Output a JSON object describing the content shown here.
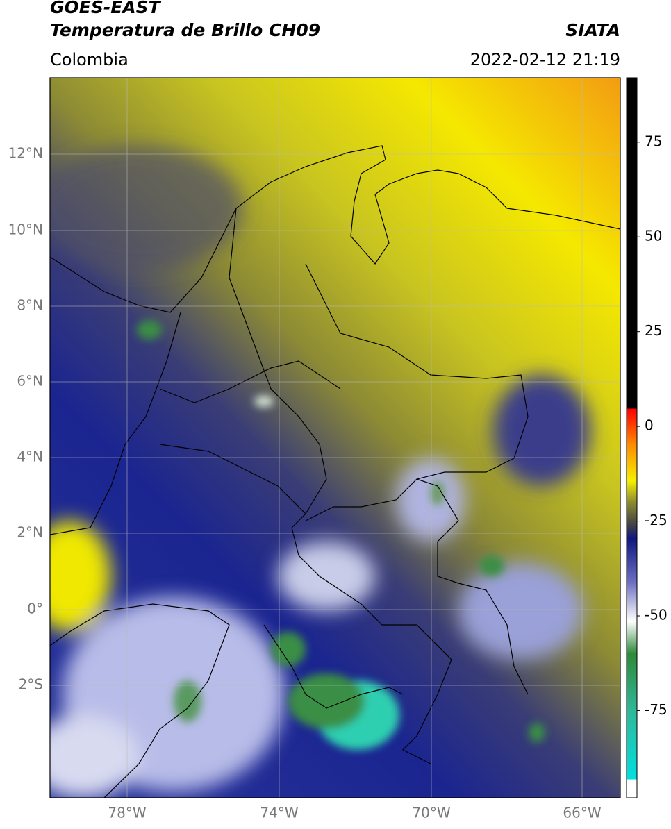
{
  "header": {
    "satellite": "GOES-EAST",
    "product": "Temperatura de Brillo CH09",
    "region": "Colombia",
    "source": "SIATA",
    "datetime": "2022-02-12 21:19"
  },
  "map": {
    "lon_labels": [
      "78°W",
      "74°W",
      "70°W",
      "66°W"
    ],
    "lat_labels": [
      "12°N",
      "10°N",
      "8°N",
      "6°N",
      "4°N",
      "2°N",
      "0°",
      "2°S"
    ]
  },
  "colorbar": {
    "range": [
      -98,
      92
    ],
    "ticks": [
      75,
      50,
      25,
      0,
      -25,
      -50,
      -75
    ]
  }
}
